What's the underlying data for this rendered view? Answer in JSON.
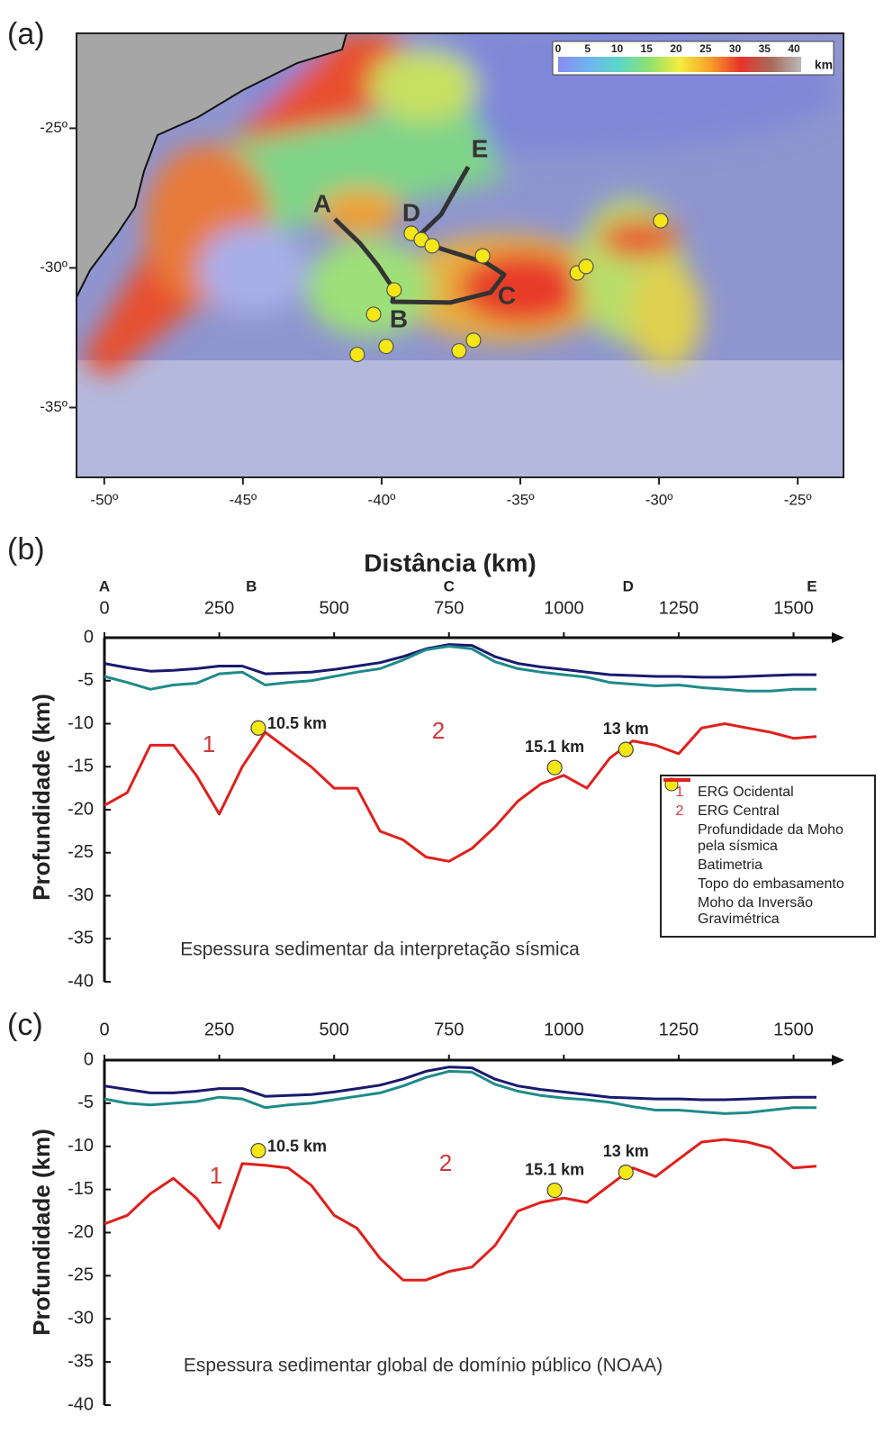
{
  "chart_data": [
    {
      "type": "map",
      "panel_label": "(a)",
      "xlim": [
        -51,
        -23.35
      ],
      "ylim": [
        -37.5,
        -21.6
      ],
      "xticks": [
        {
          "value": -50,
          "label": "-50º"
        },
        {
          "value": -45,
          "label": "-45º"
        },
        {
          "value": -40,
          "label": "-40º"
        },
        {
          "value": -35,
          "label": "-35º"
        },
        {
          "value": -30,
          "label": "-30º"
        },
        {
          "value": -25,
          "label": "-25º"
        }
      ],
      "yticks": [
        {
          "value": -25,
          "label": "-25º"
        },
        {
          "value": -30,
          "label": "-30º"
        },
        {
          "value": -35,
          "label": "-35º"
        }
      ],
      "colorbar": {
        "ticks": [
          0,
          5,
          10,
          15,
          20,
          25,
          30,
          35,
          40
        ],
        "label": "km",
        "colors": [
          "#8a8cf2",
          "#6fb4f0",
          "#5ad6c8",
          "#8fe070",
          "#f2ee3c",
          "#f7a02a",
          "#e8322a",
          "#a86a5a",
          "#b8b8b8"
        ]
      },
      "profile": {
        "labels": [
          "A",
          "B",
          "C",
          "D",
          "E"
        ],
        "color": "#333333",
        "x": [
          -41.69,
          -40.78,
          -40.13,
          -39.55,
          -39.61,
          -37.53,
          -36.07,
          -35.58,
          -36.23,
          -38.18,
          -38.67,
          -37.86,
          -36.88
        ],
        "y": [
          -28.25,
          -29.12,
          -29.92,
          -30.79,
          -31.21,
          -31.24,
          -30.88,
          -30.24,
          -29.82,
          -29.21,
          -28.86,
          -28.09,
          -26.38
        ]
      },
      "points": {
        "color": "#f5e616",
        "x": [
          -38.93,
          -38.57,
          -38.18,
          -36.36,
          -39.55,
          -40.29,
          -39.84,
          -40.88,
          -37.21,
          -36.69,
          -32.95,
          -32.63,
          -29.94
        ],
        "y": [
          -28.76,
          -28.99,
          -29.21,
          -29.57,
          -30.79,
          -31.66,
          -32.81,
          -33.1,
          -32.97,
          -32.59,
          -30.18,
          -29.95,
          -28.31
        ]
      }
    },
    {
      "type": "line",
      "panel_label": "(b)",
      "title": "Distância (km)",
      "y_label": "Profundidade (km)",
      "note": "Espessura sedimentar da interpretação sísmica",
      "xlim": [
        0,
        1595
      ],
      "xticks": [
        0,
        250,
        500,
        750,
        1000,
        1250,
        1500
      ],
      "ylim": [
        -40,
        0
      ],
      "yticks": [
        0,
        -5,
        -10,
        -15,
        -20,
        -25,
        -30,
        -35,
        -40
      ],
      "sections": {
        "labels": [
          "A",
          "B",
          "C",
          "D",
          "E"
        ],
        "x": [
          0,
          320,
          750,
          1140,
          1540
        ]
      },
      "x": [
        0,
        50,
        100,
        150,
        200,
        250,
        300,
        350,
        400,
        450,
        500,
        550,
        600,
        650,
        700,
        750,
        800,
        850,
        900,
        950,
        1000,
        1050,
        1100,
        1150,
        1200,
        1250,
        1300,
        1350,
        1400,
        1450,
        1500,
        1550
      ],
      "series": [
        {
          "name": "Batimetria",
          "color": "#1a1a6e",
          "values": [
            -3.0,
            -3.5,
            -3.9,
            -3.8,
            -3.6,
            -3.3,
            -3.3,
            -4.2,
            -4.1,
            -4.0,
            -3.7,
            -3.3,
            -2.9,
            -2.2,
            -1.3,
            -0.8,
            -0.9,
            -2.2,
            -3.0,
            -3.4,
            -3.7,
            -4.0,
            -4.3,
            -4.4,
            -4.5,
            -4.5,
            -4.6,
            -4.6,
            -4.5,
            -4.4,
            -4.3,
            -4.3
          ]
        },
        {
          "name": "Topo do embasamento",
          "color": "#1f8a8a",
          "values": [
            -4.5,
            -5.2,
            -6.0,
            -5.5,
            -5.3,
            -4.2,
            -4.0,
            -5.5,
            -5.2,
            -5.0,
            -4.5,
            -4.0,
            -3.6,
            -2.6,
            -1.4,
            -1.0,
            -1.3,
            -2.8,
            -3.6,
            -4.0,
            -4.3,
            -4.6,
            -5.2,
            -5.4,
            -5.6,
            -5.5,
            -5.8,
            -6.0,
            -6.2,
            -6.2,
            -6.0,
            -6.0
          ]
        },
        {
          "name": "Moho da Inversão Gravimétrica",
          "color": "#e0201c",
          "values": [
            -19.5,
            -18,
            -12.5,
            -12.5,
            -16,
            -20.5,
            -15,
            -11,
            -13,
            -15,
            -17.5,
            -17.5,
            -22.5,
            -23.5,
            -25.5,
            -26,
            -24.5,
            -22,
            -19,
            -17,
            -16,
            -17.5,
            -14,
            -12,
            -12.5,
            -13.5,
            -10.5,
            -10,
            -10.5,
            -11,
            -11.7,
            -11.5
          ]
        },
        {
          "name": "Profundidade da Moho pela sísmica",
          "type": "scatter",
          "color": "#f5e616",
          "x": [
            335,
            980,
            1135
          ],
          "values": [
            -10.5,
            -15.1,
            -13
          ],
          "value_labels": [
            "10.5 km",
            "15.1 km",
            "13 km"
          ]
        }
      ],
      "regions": [
        {
          "label": "1",
          "name": "ERG Ocidental"
        },
        {
          "label": "2",
          "name": "ERG Central"
        }
      ],
      "legend": true
    },
    {
      "type": "line",
      "panel_label": "(c)",
      "y_label": "Profundidade (km)",
      "note": "Espessura sedimentar global de domínio público (NOAA)",
      "xlim": [
        0,
        1595
      ],
      "xticks": [
        0,
        250,
        500,
        750,
        1000,
        1250,
        1500
      ],
      "ylim": [
        -40,
        0
      ],
      "yticks": [
        0,
        -5,
        -10,
        -15,
        -20,
        -25,
        -30,
        -35,
        -40
      ],
      "x": [
        0,
        50,
        100,
        150,
        200,
        250,
        300,
        350,
        400,
        450,
        500,
        550,
        600,
        650,
        700,
        750,
        800,
        850,
        900,
        950,
        1000,
        1050,
        1100,
        1150,
        1200,
        1250,
        1300,
        1350,
        1400,
        1450,
        1500,
        1550
      ],
      "series": [
        {
          "color": "#1a1a6e",
          "values": [
            -3.0,
            -3.4,
            -3.8,
            -3.8,
            -3.6,
            -3.3,
            -3.3,
            -4.2,
            -4.1,
            -4.0,
            -3.7,
            -3.3,
            -2.9,
            -2.2,
            -1.3,
            -0.8,
            -0.9,
            -2.2,
            -3.0,
            -3.4,
            -3.7,
            -4.0,
            -4.3,
            -4.4,
            -4.5,
            -4.5,
            -4.6,
            -4.6,
            -4.5,
            -4.4,
            -4.3,
            -4.3
          ]
        },
        {
          "color": "#1f8a8a",
          "values": [
            -4.5,
            -5.0,
            -5.2,
            -5.0,
            -4.8,
            -4.3,
            -4.5,
            -5.5,
            -5.2,
            -5.0,
            -4.6,
            -4.2,
            -3.8,
            -3.0,
            -2.0,
            -1.3,
            -1.4,
            -2.8,
            -3.6,
            -4.1,
            -4.4,
            -4.6,
            -4.9,
            -5.4,
            -5.8,
            -5.8,
            -6.0,
            -6.2,
            -6.1,
            -5.8,
            -5.5,
            -5.5
          ]
        },
        {
          "color": "#e0201c",
          "values": [
            -19,
            -18,
            -15.5,
            -13.7,
            -16,
            -19.5,
            -12,
            -12.2,
            -12.5,
            -14.5,
            -18,
            -19.5,
            -23,
            -25.5,
            -25.5,
            -24.5,
            -24,
            -21.5,
            -17.5,
            -16.5,
            -16,
            -16.5,
            -14.5,
            -12.5,
            -13.5,
            -11.5,
            -9.5,
            -9.2,
            -9.5,
            -10.2,
            -12.5,
            -12.3
          ]
        },
        {
          "type": "scatter",
          "color": "#f5e616",
          "x": [
            335,
            980,
            1135
          ],
          "values": [
            -10.5,
            -15.1,
            -13
          ],
          "value_labels": [
            "10.5 km",
            "15.1 km",
            "13 km"
          ]
        }
      ],
      "regions": [
        {
          "label": "1"
        },
        {
          "label": "2"
        }
      ]
    }
  ]
}
